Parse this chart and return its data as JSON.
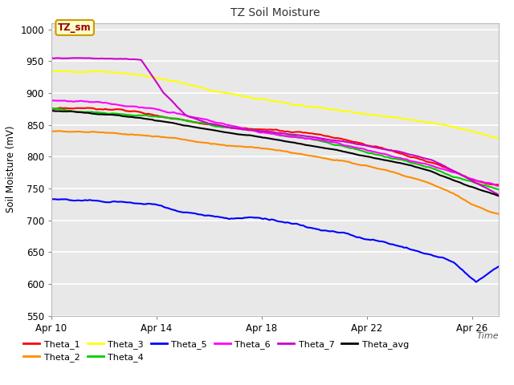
{
  "title": "TZ Soil Moisture",
  "xlabel": "Time",
  "ylabel": "Soil Moisture (mV)",
  "ylim": [
    550,
    1010
  ],
  "xlim": [
    0,
    17
  ],
  "x_ticks": [
    0,
    4,
    8,
    12,
    16
  ],
  "x_tick_labels": [
    "Apr 10",
    "Apr 14",
    "Apr 18",
    "Apr 22",
    "Apr 26"
  ],
  "y_ticks": [
    550,
    600,
    650,
    700,
    750,
    800,
    850,
    900,
    950,
    1000
  ],
  "fig_bg": "#ffffff",
  "plot_bg": "#e8e8e8",
  "grid_color": "#ffffff",
  "series_colors": {
    "Theta_1": "#ff0000",
    "Theta_2": "#ff8c00",
    "Theta_3": "#ffff00",
    "Theta_4": "#00cc00",
    "Theta_5": "#0000ff",
    "Theta_6": "#ff00ff",
    "Theta_7": "#cc00cc",
    "Theta_avg": "#000000"
  },
  "theta1_pts": [
    875,
    873,
    871,
    869,
    865,
    860,
    856,
    852,
    848,
    844,
    840,
    835,
    828,
    820,
    812,
    803,
    793,
    783,
    770,
    758,
    750
  ],
  "theta2_pts": [
    840,
    839,
    838,
    837,
    835,
    833,
    830,
    826,
    822,
    818,
    813,
    808,
    803,
    798,
    792,
    785,
    776,
    765,
    750,
    733,
    720
  ],
  "theta3_pts": [
    935,
    934,
    933,
    932,
    928,
    922,
    915,
    907,
    900,
    893,
    887,
    882,
    878,
    874,
    870,
    866,
    862,
    857,
    851,
    844,
    835
  ],
  "theta4_pts": [
    876,
    874,
    872,
    870,
    867,
    864,
    860,
    856,
    852,
    847,
    842,
    836,
    830,
    823,
    816,
    808,
    800,
    790,
    778,
    768,
    760
  ],
  "theta5_pts": [
    733,
    731,
    729,
    726,
    722,
    717,
    712,
    707,
    704,
    708,
    703,
    697,
    690,
    682,
    673,
    663,
    652,
    640,
    627,
    595,
    620
  ],
  "theta6_pts": [
    888,
    887,
    886,
    882,
    877,
    870,
    862,
    855,
    848,
    842,
    836,
    830,
    823,
    816,
    808,
    800,
    790,
    779,
    767,
    754,
    745
  ],
  "theta7_pts": [
    955,
    955,
    954,
    953,
    952,
    900,
    865,
    852,
    845,
    841,
    838,
    835,
    831,
    826,
    820,
    813,
    805,
    796,
    778,
    758,
    740
  ],
  "thetaavg_pts": [
    872,
    870,
    868,
    866,
    862,
    856,
    850,
    844,
    838,
    833,
    828,
    822,
    816,
    809,
    802,
    795,
    787,
    777,
    763,
    750,
    738
  ],
  "lw": 1.5,
  "legend_row1": [
    "Theta_1",
    "Theta_2",
    "Theta_3",
    "Theta_4",
    "Theta_5",
    "Theta_6"
  ],
  "legend_row2": [
    "Theta_7",
    "Theta_avg"
  ]
}
